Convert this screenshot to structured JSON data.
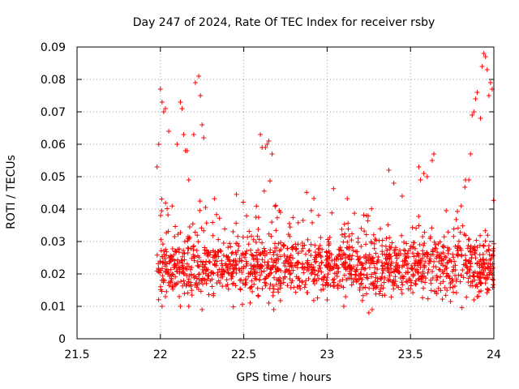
{
  "chart_data": {
    "type": "scatter",
    "title": "Day 247 of 2024, Rate Of TEC Index for receiver rsby",
    "xlabel": "GPS time / hours",
    "ylabel": "ROTI / TECUs",
    "xlim": [
      21.5,
      24
    ],
    "ylim": [
      0,
      0.09
    ],
    "xticks": [
      "21.5",
      "22",
      "22.5",
      "23",
      "23.5",
      "24"
    ],
    "yticks": [
      "0",
      "0.01",
      "0.02",
      "0.03",
      "0.04",
      "0.05",
      "0.06",
      "0.07",
      "0.08",
      "0.09"
    ],
    "grid": true,
    "marker": "+",
    "color": "#ff0000",
    "series": [
      {
        "name": "ROTI",
        "points": [
          [
            21.98,
            0.053
          ],
          [
            21.99,
            0.06
          ],
          [
            22.0,
            0.077
          ],
          [
            22.01,
            0.073
          ],
          [
            22.02,
            0.07
          ],
          [
            22.03,
            0.071
          ],
          [
            22.05,
            0.064
          ],
          [
            22.1,
            0.06
          ],
          [
            22.12,
            0.073
          ],
          [
            22.13,
            0.071
          ],
          [
            22.14,
            0.063
          ],
          [
            22.15,
            0.058
          ],
          [
            22.16,
            0.058
          ],
          [
            22.17,
            0.049
          ],
          [
            22.2,
            0.063
          ],
          [
            22.21,
            0.079
          ],
          [
            22.23,
            0.081
          ],
          [
            22.24,
            0.075
          ],
          [
            22.25,
            0.066
          ],
          [
            22.26,
            0.062
          ],
          [
            22.6,
            0.063
          ],
          [
            22.61,
            0.059
          ],
          [
            22.63,
            0.059
          ],
          [
            22.64,
            0.06
          ],
          [
            22.65,
            0.061
          ],
          [
            22.67,
            0.057
          ],
          [
            23.83,
            0.049
          ],
          [
            23.85,
            0.049
          ],
          [
            23.86,
            0.057
          ],
          [
            23.87,
            0.069
          ],
          [
            23.88,
            0.07
          ],
          [
            23.89,
            0.074
          ],
          [
            23.9,
            0.076
          ],
          [
            23.92,
            0.068
          ],
          [
            23.93,
            0.084
          ],
          [
            23.94,
            0.088
          ],
          [
            23.95,
            0.087
          ],
          [
            23.96,
            0.083
          ],
          [
            23.97,
            0.075
          ],
          [
            23.98,
            0.079
          ],
          [
            23.99,
            0.077
          ],
          [
            23.55,
            0.053
          ],
          [
            23.56,
            0.049
          ],
          [
            23.58,
            0.051
          ],
          [
            23.6,
            0.05
          ],
          [
            23.63,
            0.055
          ],
          [
            23.64,
            0.057
          ],
          [
            23.37,
            0.052
          ],
          [
            23.4,
            0.048
          ],
          [
            23.45,
            0.044
          ],
          [
            22.01,
            0.01
          ],
          [
            22.03,
            0.013
          ],
          [
            22.12,
            0.01
          ],
          [
            22.17,
            0.01
          ],
          [
            22.25,
            0.009
          ],
          [
            22.65,
            0.011
          ],
          [
            22.68,
            0.009
          ],
          [
            23.0,
            0.012
          ],
          [
            23.1,
            0.01
          ],
          [
            23.25,
            0.008
          ],
          [
            23.27,
            0.009
          ],
          [
            23.88,
            0.012
          ],
          [
            23.9,
            0.013
          ],
          [
            23.97,
            0.015
          ]
        ]
      }
    ],
    "band": {
      "x_range": [
        21.98,
        24.0
      ],
      "y_low": 0.016,
      "y_high": 0.028,
      "spread": 0.008,
      "n_points": 1500
    }
  }
}
